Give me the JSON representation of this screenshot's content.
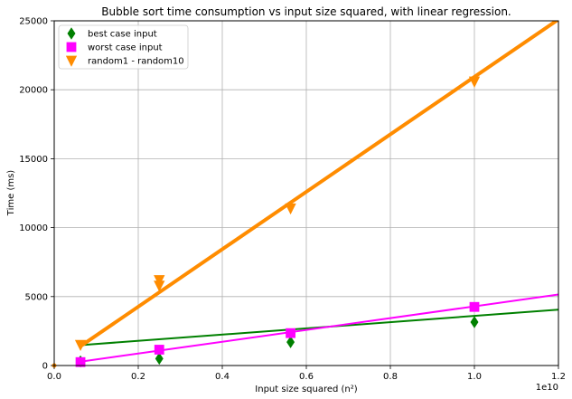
{
  "chart_data": {
    "type": "scatter",
    "title": "Bubble sort time consumption vs input size squared, with linear regression.",
    "xlabel": "Input size squared (n²)",
    "ylabel": "Time (ms)",
    "x_offset_label": "1e10",
    "xlim": [
      0,
      1.2
    ],
    "ylim": [
      0,
      25000
    ],
    "xticks": [
      0.0,
      0.2,
      0.4,
      0.6,
      0.8,
      1.0,
      1.2
    ],
    "xtick_labels": [
      "0.0",
      "0.2",
      "0.4",
      "0.6",
      "0.8",
      "1.0",
      "1.2"
    ],
    "yticks": [
      0,
      5000,
      10000,
      15000,
      20000,
      25000
    ],
    "ytick_labels": [
      "0",
      "5000",
      "10000",
      "15000",
      "20000",
      "25000"
    ],
    "grid": true,
    "legend_position": "top-left",
    "series": [
      {
        "name": "best case input",
        "color": "#008000",
        "marker": "diamond",
        "points": [
          [
            0.0625,
            300
          ],
          [
            0.25,
            500
          ],
          [
            0.5625,
            1700
          ],
          [
            1.0,
            3150
          ]
        ],
        "fit": {
          "x": [
            0.0625,
            1.2
          ],
          "y": [
            1480,
            4050
          ],
          "width": 2
        }
      },
      {
        "name": "worst case input",
        "color": "#ff00ff",
        "marker": "square",
        "points": [
          [
            0.0625,
            250
          ],
          [
            0.25,
            1150
          ],
          [
            0.5625,
            2350
          ],
          [
            1.0,
            4250
          ]
        ],
        "fit": {
          "x": [
            0.0625,
            1.2
          ],
          "y": [
            280,
            5150
          ],
          "width": 2
        }
      },
      {
        "name": "random1 - random10",
        "color": "#ff8c00",
        "marker": "triangle-down",
        "points": [
          [
            0.0625,
            1500
          ],
          [
            0.25,
            6200
          ],
          [
            0.25,
            5800
          ],
          [
            0.5625,
            11400
          ],
          [
            1.0,
            20600
          ]
        ],
        "fit": {
          "x": [
            0.0625,
            1.2
          ],
          "y": [
            1400,
            25100
          ],
          "width": 4
        }
      }
    ]
  }
}
